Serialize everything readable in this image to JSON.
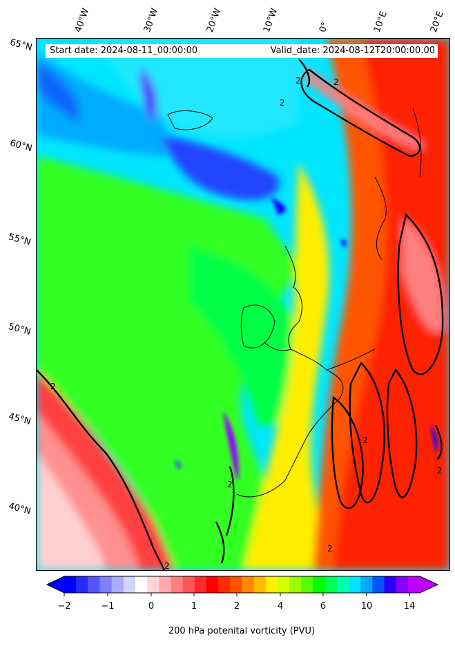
{
  "header": {
    "start_date": "Start date: 2024-08-11_00:00:00",
    "valid_date": "Valid_date: 2024-08-12T20:00:00.00"
  },
  "longitude_labels": [
    "40°W",
    "30°W",
    "20°W",
    "10°W",
    "0°",
    "10°E",
    "20°E"
  ],
  "latitude_labels": [
    "65°N",
    "60°N",
    "55°N",
    "50°N",
    "45°N",
    "40°N"
  ],
  "contour_label": "2",
  "colorbar": {
    "ticks": [
      "−2",
      "−1",
      "0",
      "1",
      "2",
      "4",
      "6",
      "10",
      "14"
    ],
    "label": "200 hPa potenital vorticity (PVU)",
    "colors": [
      "#0000ff",
      "#2a2aff",
      "#5555ff",
      "#7f7fff",
      "#aaaaff",
      "#d4d4ff",
      "#ffffff",
      "#ffd4d4",
      "#ffaaaa",
      "#ff7f7f",
      "#ff5555",
      "#ff2a2a",
      "#ff0000",
      "#ff2a00",
      "#ff5500",
      "#ff8800",
      "#ffbb00",
      "#ffee00",
      "#d4ff00",
      "#99ff00",
      "#55ff00",
      "#00ff00",
      "#00ff55",
      "#00ffaa",
      "#00e5ff",
      "#00aaff",
      "#0055ff",
      "#2a00ff",
      "#8800ff",
      "#bb00ff"
    ]
  }
}
